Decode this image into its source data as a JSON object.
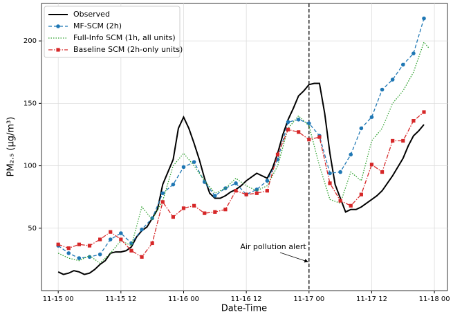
{
  "chart_data": {
    "type": "line",
    "xlabel": "Date-Time",
    "ylabel": "PM₂.₅ (μg/m³)",
    "xlim": [
      -3.2,
      74.5
    ],
    "ylim": [
      0,
      230
    ],
    "xticks": [
      {
        "value": 0,
        "label": "11-15 00"
      },
      {
        "value": 12,
        "label": "11-15 12"
      },
      {
        "value": 24,
        "label": "11-16 00"
      },
      {
        "value": 36,
        "label": "11-16 12"
      },
      {
        "value": 48,
        "label": "11-17 00"
      },
      {
        "value": 60,
        "label": "11-17 12"
      },
      {
        "value": 72,
        "label": "11-18 00"
      }
    ],
    "yticks": [
      50,
      100,
      150,
      200
    ],
    "grid": true,
    "legend": "upper left",
    "annotation": {
      "text": "Air pollution alert",
      "x": 48,
      "y": 23
    },
    "series": [
      {
        "name": "Observed",
        "color": "#000000",
        "linestyle": "solid",
        "marker": "none",
        "x": [
          0,
          1,
          2,
          3,
          4,
          5,
          6,
          7,
          8,
          9,
          10,
          11,
          12,
          13,
          14,
          15,
          16,
          17,
          18,
          19,
          20,
          21,
          22,
          23,
          24,
          25,
          26,
          27,
          28,
          29,
          30,
          31,
          32,
          33,
          34,
          35,
          36,
          37,
          38,
          39,
          40,
          41,
          42,
          43,
          44,
          45,
          46,
          47,
          48,
          49,
          50,
          51,
          52,
          53,
          54,
          55,
          56,
          57,
          58,
          59,
          60,
          61,
          62,
          63,
          64,
          65,
          66,
          67,
          68,
          69,
          70
        ],
        "values": [
          15,
          13,
          14,
          16,
          15,
          13,
          14,
          17,
          21,
          24,
          30,
          31,
          31,
          32,
          35,
          43,
          48,
          51,
          58,
          65,
          85,
          95,
          105,
          130,
          139,
          130,
          118,
          105,
          90,
          78,
          74,
          74,
          76,
          79,
          81,
          84,
          88,
          91,
          94,
          92,
          90,
          98,
          110,
          125,
          137,
          146,
          156,
          160,
          165,
          166,
          166,
          142,
          110,
          85,
          74,
          63,
          65,
          65,
          67,
          70,
          73,
          76,
          80,
          86,
          92,
          99,
          106,
          116,
          124,
          128,
          133
        ]
      },
      {
        "name": "MF-SCM (2h)",
        "color": "#1f77b4",
        "linestyle": "dashed",
        "marker": "circle",
        "x": [
          0,
          2,
          4,
          6,
          8,
          10,
          12,
          14,
          16,
          18,
          20,
          22,
          24,
          26,
          28,
          30,
          32,
          34,
          36,
          38,
          40,
          42,
          44,
          46,
          48,
          50,
          52,
          54,
          56,
          58,
          60,
          62,
          64,
          66,
          68,
          70
        ],
        "values": [
          36,
          30,
          26,
          27,
          29,
          41,
          46,
          38,
          49,
          58,
          78,
          85,
          99,
          103,
          87,
          76,
          82,
          86,
          77,
          81,
          88,
          105,
          135,
          137,
          134,
          124,
          94,
          95,
          109,
          130,
          139,
          161,
          169,
          181,
          190,
          218
        ]
      },
      {
        "name": "Full-Info SCM (1h, all units)",
        "color": "#2ca02c",
        "linestyle": "dotted",
        "marker": "none",
        "x": [
          0,
          2,
          4,
          6,
          8,
          10,
          12,
          14,
          16,
          18,
          20,
          22,
          24,
          26,
          28,
          30,
          32,
          34,
          36,
          38,
          40,
          42,
          44,
          46,
          48,
          50,
          52,
          54,
          56,
          58,
          60,
          62,
          64,
          66,
          68,
          70,
          71
        ],
        "values": [
          30,
          26,
          24,
          28,
          22,
          30,
          40,
          36,
          67,
          57,
          72,
          100,
          110,
          100,
          88,
          78,
          82,
          90,
          84,
          80,
          84,
          100,
          130,
          140,
          132,
          100,
          73,
          70,
          95,
          88,
          120,
          130,
          150,
          160,
          175,
          199,
          194
        ]
      },
      {
        "name": "Baseline SCM (2h-only units)",
        "color": "#d62728",
        "linestyle": "dashdot",
        "marker": "square",
        "x": [
          0,
          2,
          4,
          6,
          8,
          10,
          12,
          14,
          16,
          18,
          20,
          22,
          24,
          26,
          28,
          30,
          32,
          34,
          36,
          38,
          40,
          42,
          44,
          46,
          48,
          50,
          52,
          54,
          56,
          58,
          60,
          62,
          64,
          66,
          68,
          70
        ],
        "values": [
          37,
          34,
          37,
          36,
          41,
          47,
          41,
          32,
          27,
          38,
          71,
          59,
          66,
          68,
          62,
          63,
          65,
          80,
          77,
          78,
          80,
          109,
          129,
          127,
          121,
          123,
          86,
          72,
          68,
          77,
          101,
          95,
          120,
          120,
          136,
          143
        ]
      }
    ]
  }
}
